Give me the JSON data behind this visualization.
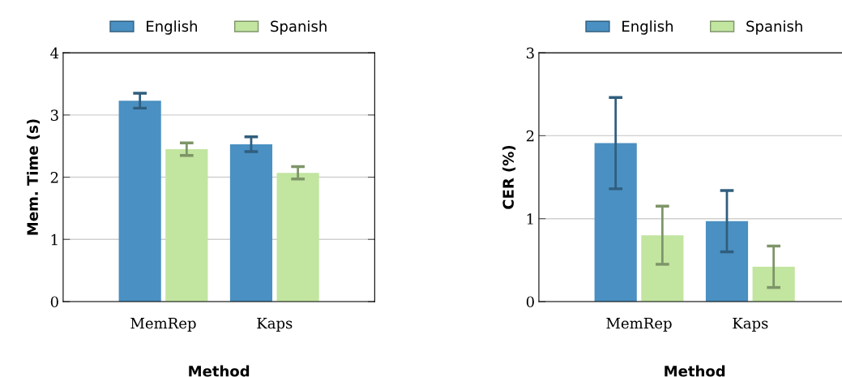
{
  "chart_data": [
    {
      "type": "bar",
      "categories": [
        "MemRep",
        "Kaps"
      ],
      "xlabel": "Method",
      "ylabel": "Mem. Time (s)",
      "ylim": [
        0,
        4
      ],
      "yticks": [
        0,
        1,
        2,
        3,
        4
      ],
      "grid": "y",
      "legend": "top",
      "series": [
        {
          "name": "English",
          "color": "#4a90c2",
          "values": [
            3.23,
            2.53
          ],
          "errors": [
            0.12,
            0.12
          ]
        },
        {
          "name": "Spanish",
          "color": "#c2e5a0",
          "values": [
            2.45,
            2.07
          ],
          "errors": [
            0.1,
            0.1
          ]
        }
      ]
    },
    {
      "type": "bar",
      "categories": [
        "MemRep",
        "Kaps"
      ],
      "xlabel": "Method",
      "ylabel": "CER (%)",
      "ylim": [
        0,
        3
      ],
      "yticks": [
        0,
        1,
        2,
        3
      ],
      "grid": "y",
      "legend": "top",
      "series": [
        {
          "name": "English",
          "color": "#4a90c2",
          "values": [
            1.91,
            0.97
          ],
          "errors": [
            0.55,
            0.37
          ]
        },
        {
          "name": "Spanish",
          "color": "#c2e5a0",
          "values": [
            0.8,
            0.42
          ],
          "errors": [
            0.35,
            0.25
          ]
        }
      ]
    }
  ]
}
